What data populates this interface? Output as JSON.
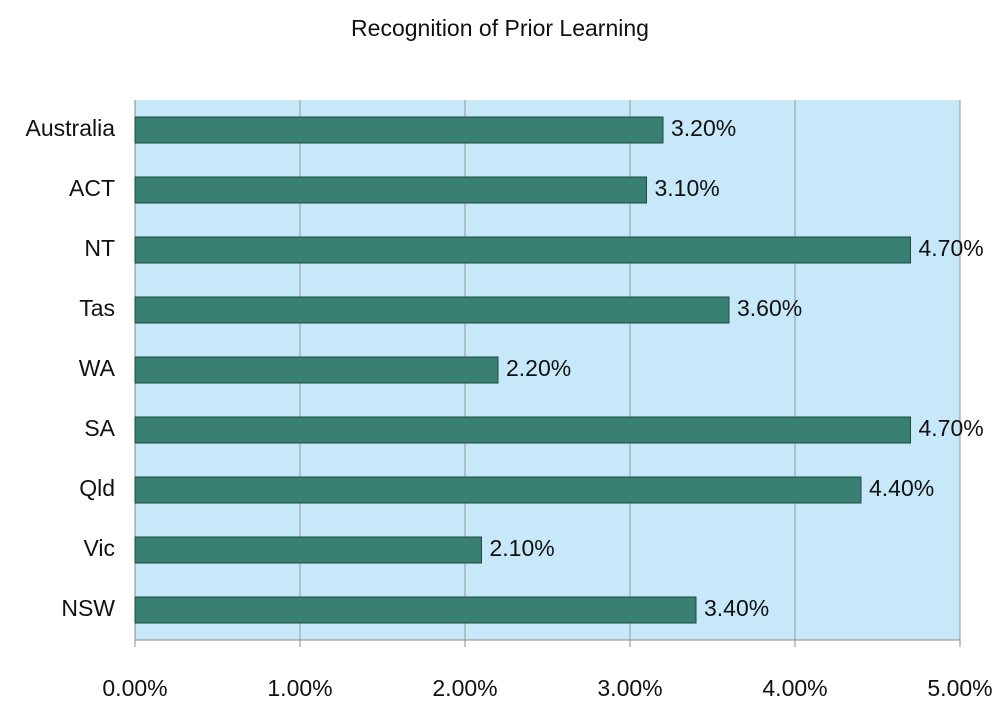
{
  "chart_data": {
    "type": "bar",
    "orientation": "horizontal",
    "title": "Recognition of Prior Learning",
    "categories": [
      "Australia",
      "ACT",
      "NT",
      "Tas",
      "WA",
      "SA",
      "Qld",
      "Vic",
      "NSW"
    ],
    "values": [
      3.2,
      3.1,
      4.7,
      3.6,
      2.2,
      4.7,
      4.4,
      2.1,
      3.4
    ],
    "value_labels": [
      "3.20%",
      "3.10%",
      "4.70%",
      "3.60%",
      "2.20%",
      "4.70%",
      "4.40%",
      "2.10%",
      "3.40%"
    ],
    "color": "#3a8072",
    "xlim": [
      0,
      5
    ],
    "xticks": [
      {
        "value": 0,
        "label": "0.00%"
      },
      {
        "value": 1,
        "label": "1.00%"
      },
      {
        "value": 2,
        "label": "2.00%"
      },
      {
        "value": 3,
        "label": "3.00%"
      },
      {
        "value": 4,
        "label": "4.00%"
      },
      {
        "value": 5,
        "label": "5.00%"
      }
    ],
    "grid": true
  }
}
